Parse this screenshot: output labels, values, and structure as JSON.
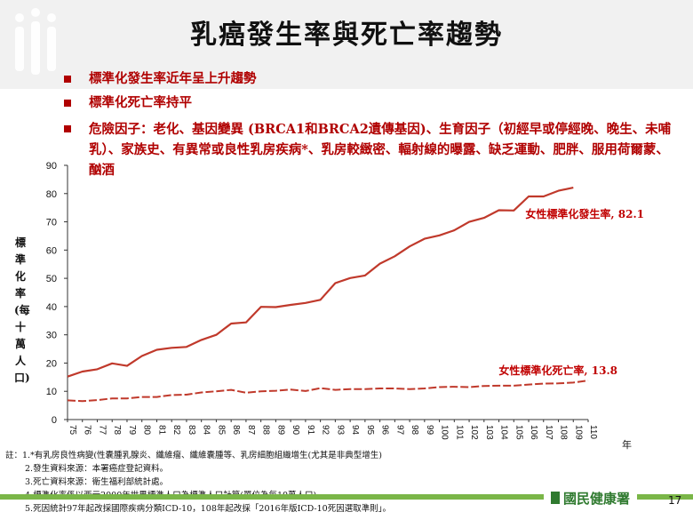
{
  "title": "乳癌發生率與死亡率趨勢",
  "bullets": [
    "標準化發生率近年呈上升趨勢",
    "標準化死亡率持平",
    "危險因子：老化、基因變異 (BRCA1和BRCA2遺傳基因)、生育因子（初經早或停經晚、晚生、未哺乳）、家族史、有異常或良性乳房疾病*、乳房較緻密、輻射線的曝露、缺乏運動、肥胖、服用荷爾蒙、酗酒"
  ],
  "notes": [
    "註：1.*有乳房良性病變(性囊腫乳腺炎、纖維瘤、纖維囊腫等、乳房細胞組織增生(尤其是非典型增生)",
    "2.發生資料來源：本署癌症登記資料。",
    "3.死亡資料來源：衛生福利部統計處。",
    "4.標準化率係以西元2000年世界標準人口為標準人口計算(單位為每10萬人口)。",
    "5.死因統計97年起改採國際疾病分類ICD-10，108年起改採「2016年版ICD-10死因選取準則」。"
  ],
  "footer": {
    "org": "國民健康署",
    "page": "17"
  },
  "chart_data": {
    "type": "line",
    "ylabel": "標準化率(每十萬人口)",
    "xlabel": "年",
    "ylim": [
      0,
      90
    ],
    "yticks": [
      0,
      10,
      20,
      30,
      40,
      50,
      60,
      70,
      80,
      90
    ],
    "x": [
      75,
      76,
      77,
      78,
      79,
      80,
      81,
      82,
      83,
      84,
      85,
      86,
      87,
      88,
      89,
      90,
      91,
      92,
      93,
      94,
      95,
      96,
      97,
      98,
      99,
      100,
      101,
      102,
      103,
      104,
      105,
      106,
      107,
      108,
      109,
      110
    ],
    "series": [
      {
        "name": "女性標準化發生率",
        "end_label": "女性標準化發生率, 82.1",
        "color": "#c0392b",
        "values": [
          15.2,
          17.0,
          17.8,
          19.9,
          19.0,
          22.5,
          24.7,
          25.4,
          25.7,
          28.2,
          30.0,
          34.0,
          34.4,
          39.9,
          39.8,
          40.6,
          41.3,
          42.4,
          48.3,
          50.1,
          51.0,
          55.2,
          57.8,
          61.3,
          64.0,
          65.2,
          67.0,
          70.0,
          71.4,
          74.1,
          74.0,
          79.0,
          79.0,
          81.0,
          82.1,
          null
        ]
      },
      {
        "name": "女性標準化死亡率",
        "end_label": "女性標準化死亡率, 13.8",
        "color": "#c0392b",
        "dashed": true,
        "values": [
          6.8,
          6.5,
          6.9,
          7.5,
          7.5,
          8.0,
          8.0,
          8.7,
          8.8,
          9.6,
          10.0,
          10.5,
          9.5,
          10.0,
          10.2,
          10.6,
          10.1,
          11.1,
          10.5,
          10.8,
          10.8,
          11.0,
          11.0,
          10.8,
          11.0,
          11.5,
          11.6,
          11.5,
          11.9,
          12.0,
          12.0,
          12.4,
          12.7,
          12.8,
          13.1,
          13.8
        ]
      }
    ]
  }
}
